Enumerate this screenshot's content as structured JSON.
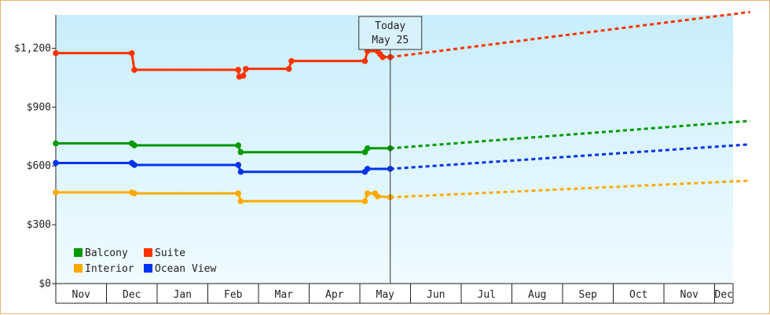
{
  "chart_data": {
    "type": "line",
    "y_tick_labels": [
      "$0",
      "$300",
      "$600",
      "$900",
      "$1,200"
    ],
    "y_tick_values": [
      0,
      300,
      600,
      900,
      1200
    ],
    "ylim": [
      0,
      1200
    ],
    "x_months": [
      "Nov",
      "Dec",
      "Jan",
      "Feb",
      "Mar",
      "Apr",
      "May",
      "Jun",
      "Jul",
      "Aug",
      "Sep",
      "Oct",
      "Nov",
      "Dec"
    ],
    "today_marker": {
      "line1": "Today",
      "line2": "May 25",
      "month_position": 6.6
    },
    "legend": {
      "placement": "bottom-left"
    },
    "series": [
      {
        "name": "Suite",
        "color": "#ff3300",
        "history": [
          [
            0,
            1175
          ],
          [
            1.5,
            1175
          ],
          [
            1.55,
            1090
          ],
          [
            3.6,
            1090
          ],
          [
            3.62,
            1055
          ],
          [
            3.7,
            1060
          ],
          [
            3.75,
            1095
          ],
          [
            4.6,
            1095
          ],
          [
            4.65,
            1135
          ],
          [
            6.1,
            1135
          ],
          [
            6.15,
            1185
          ],
          [
            6.35,
            1185
          ],
          [
            6.4,
            1170
          ],
          [
            6.45,
            1155
          ],
          [
            6.6,
            1155
          ]
        ],
        "projection": [
          [
            6.6,
            1155
          ],
          [
            13.7,
            1385
          ]
        ]
      },
      {
        "name": "Balcony",
        "color": "#009900",
        "history": [
          [
            0,
            715
          ],
          [
            1.5,
            715
          ],
          [
            1.55,
            705
          ],
          [
            3.6,
            705
          ],
          [
            3.65,
            670
          ],
          [
            6.1,
            670
          ],
          [
            6.15,
            690
          ],
          [
            6.6,
            690
          ]
        ],
        "projection": [
          [
            6.6,
            690
          ],
          [
            13.7,
            830
          ]
        ]
      },
      {
        "name": "Ocean View",
        "color": "#0033ee",
        "history": [
          [
            0,
            615
          ],
          [
            1.5,
            615
          ],
          [
            1.55,
            605
          ],
          [
            3.6,
            605
          ],
          [
            3.65,
            570
          ],
          [
            6.1,
            570
          ],
          [
            6.15,
            585
          ],
          [
            6.6,
            585
          ]
        ],
        "projection": [
          [
            6.6,
            585
          ],
          [
            13.7,
            710
          ]
        ]
      },
      {
        "name": "Interior",
        "color": "#ffaa00",
        "history": [
          [
            0,
            465
          ],
          [
            1.5,
            465
          ],
          [
            1.55,
            460
          ],
          [
            3.6,
            460
          ],
          [
            3.65,
            420
          ],
          [
            6.1,
            420
          ],
          [
            6.15,
            460
          ],
          [
            6.3,
            460
          ],
          [
            6.35,
            445
          ],
          [
            6.6,
            440
          ]
        ],
        "projection": [
          [
            6.6,
            440
          ],
          [
            13.7,
            525
          ]
        ]
      }
    ],
    "legend_order": [
      "Balcony",
      "Suite",
      "Interior",
      "Ocean View"
    ]
  }
}
